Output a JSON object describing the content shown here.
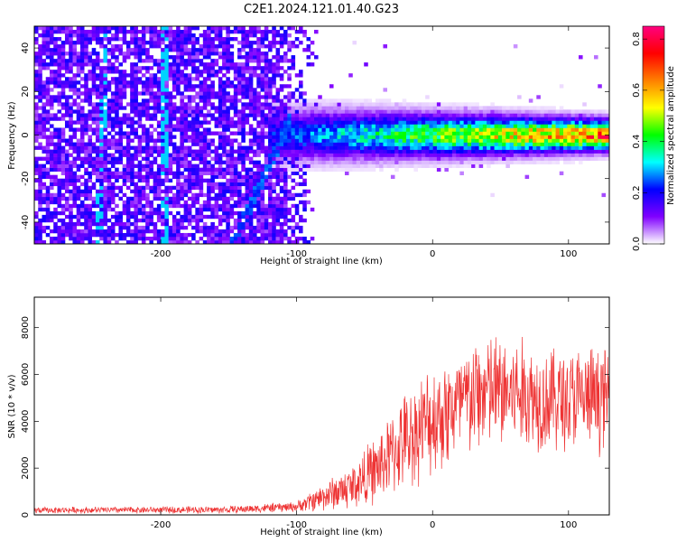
{
  "title": "C2E1.2024.121.01.40.G23",
  "chart_data": [
    {
      "type": "heatmap",
      "xlabel": "Height of straight line (km)",
      "ylabel": "Frequency (Hz)",
      "xlim": [
        -293,
        130
      ],
      "ylim": [
        -50,
        50
      ],
      "xticks": [
        -200,
        -100,
        0,
        100
      ],
      "xtick_labels": [
        "-200",
        "-100",
        "0",
        "100"
      ],
      "yticks": [
        -40,
        -20,
        0,
        20,
        40
      ],
      "ytick_labels": [
        "-40",
        "-20",
        "0",
        "20",
        "40"
      ],
      "colorbar": {
        "label": "Normalized spectral amplitude",
        "range": [
          0,
          0.85
        ],
        "ticks": [
          0,
          0.2,
          0.4,
          0.6,
          0.8
        ],
        "tick_labels": [
          "0.0",
          "0.2",
          "0.4",
          "0.6",
          "0.8"
        ],
        "colormap": [
          "#ffffff",
          "#8000ff",
          "#0000ff",
          "#00ffff",
          "#00ff00",
          "#ffff00",
          "#ff8000",
          "#ff0000",
          "#ff0080"
        ]
      },
      "features": {
        "noise_region_x": [
          -293,
          -85
        ],
        "noise_amplitude": 0.2,
        "signal_band_center_hz": 0,
        "signal_band_start_x": -120,
        "signal_amplitude_at_end": 0.85,
        "vertical_streaks_x": [
          -243,
          -197
        ]
      }
    },
    {
      "type": "line",
      "xlabel": "Height of straight line (km)",
      "ylabel": "SNR (10 * v/v)",
      "xlim": [
        -293,
        130
      ],
      "ylim": [
        0,
        9300
      ],
      "xticks": [
        -200,
        -100,
        0,
        100
      ],
      "xtick_labels": [
        "-200",
        "-100",
        "0",
        "100"
      ],
      "yticks": [
        0,
        2000,
        4000,
        6000,
        8000
      ],
      "ytick_labels": [
        "0",
        "2000",
        "4000",
        "6000",
        "8000"
      ],
      "color": "#ee3333",
      "envelope": {
        "x": [
          -293,
          -150,
          -100,
          -80,
          -60,
          -40,
          -20,
          0,
          20,
          40,
          60,
          80,
          100,
          130
        ],
        "mean": [
          200,
          220,
          350,
          800,
          1200,
          2000,
          3200,
          4100,
          4700,
          5300,
          5200,
          5000,
          4900,
          5000
        ],
        "spread": [
          150,
          180,
          250,
          700,
          1100,
          1700,
          2300,
          2700,
          2800,
          2900,
          2800,
          2600,
          2600,
          2500
        ]
      }
    }
  ]
}
